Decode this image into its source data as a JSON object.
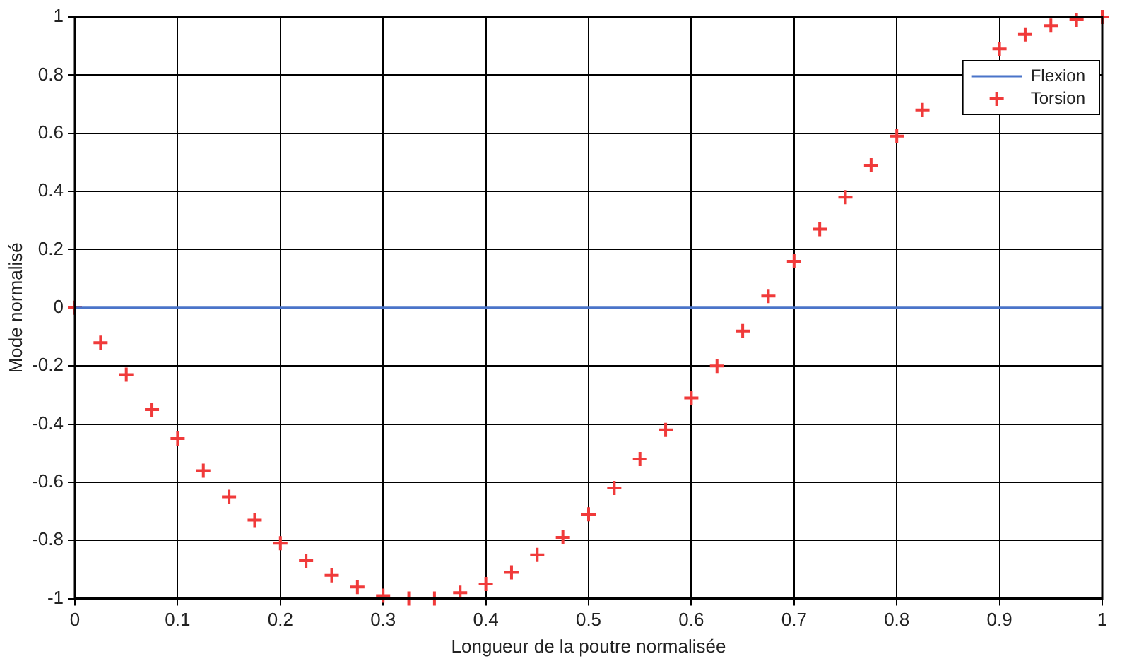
{
  "chart_data": {
    "type": "line",
    "xlabel": "Longueur de la poutre normalisée",
    "ylabel": "Mode normalisé",
    "xlim": [
      0,
      1
    ],
    "xticks": [
      0,
      0.1,
      0.2,
      0.3,
      0.4,
      0.5,
      0.6,
      0.7,
      0.8,
      0.9,
      1
    ],
    "ylim": [
      -1,
      1
    ],
    "yticks": [
      -1,
      -0.8,
      -0.6,
      -0.4,
      -0.2,
      0,
      0.2,
      0.4,
      0.6,
      0.8,
      1
    ],
    "grid": true,
    "legend": "top right",
    "series": [
      {
        "name": "Flexion",
        "color": "#4a74c9",
        "marker": "none",
        "x": [
          0,
          1
        ],
        "values": [
          0,
          0
        ]
      },
      {
        "name": "Torsion",
        "color": "#f03a3a",
        "type": "scatter",
        "marker": "cross",
        "x": [
          0,
          0.025,
          0.05,
          0.075,
          0.1,
          0.125,
          0.15,
          0.175,
          0.2,
          0.225,
          0.25,
          0.275,
          0.3,
          0.325,
          0.35,
          0.375,
          0.4,
          0.425,
          0.45,
          0.475,
          0.5,
          0.525,
          0.55,
          0.575,
          0.6,
          0.625,
          0.65,
          0.675,
          0.7,
          0.725,
          0.75,
          0.775,
          0.8,
          0.825,
          0.85,
          0.875,
          0.9,
          0.925,
          0.95,
          0.975,
          1
        ],
        "values": [
          0,
          -0.12,
          -0.23,
          -0.35,
          -0.45,
          -0.56,
          -0.65,
          -0.73,
          -0.81,
          -0.87,
          -0.92,
          -0.96,
          -0.99,
          -1,
          -1,
          -0.98,
          -0.95,
          -0.91,
          -0.85,
          -0.79,
          -0.71,
          -0.62,
          -0.52,
          -0.42,
          -0.31,
          -0.2,
          -0.08,
          0.04,
          0.16,
          0.27,
          0.38,
          0.49,
          0.59,
          0.68,
          null,
          null,
          0.89,
          0.94,
          0.97,
          0.99,
          1
        ]
      }
    ]
  }
}
